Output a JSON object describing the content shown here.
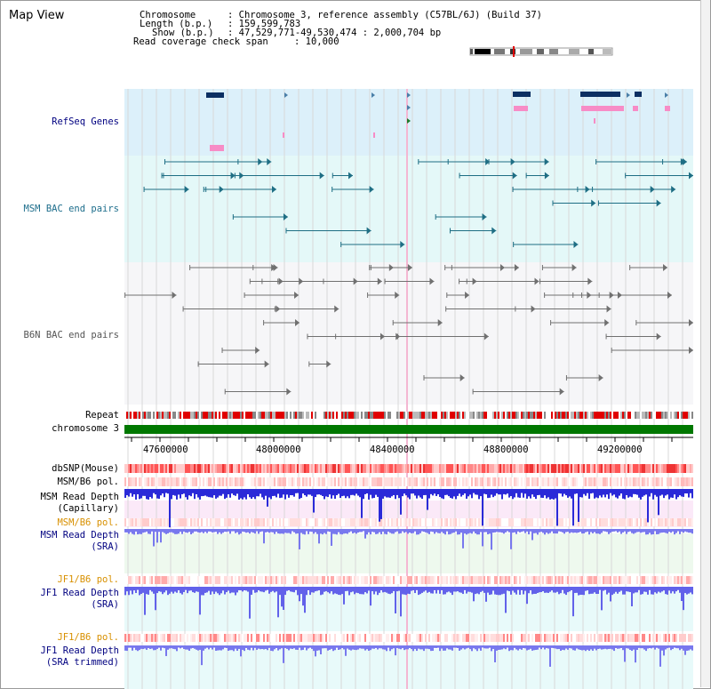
{
  "window": {
    "title": "Map View"
  },
  "info": {
    "chromosome_key": "Chromosome",
    "chromosome_val": ": Chromosome 3, reference assembly (C57BL/6J) (Build 37)",
    "length_key": "Length (b.p.)",
    "length_val": ": 159,599,783",
    "show_key": "Show (b.p.)",
    "show_val": ": 47,529,771-49,530,474 : 2,000,704 bp",
    "coverage_key": "Read coverage check span",
    "coverage_val": ": 10,000"
  },
  "tracks": {
    "refseq": "RefSeq Genes",
    "msm_bac": "MSM BAC end pairs",
    "b6n_bac": "B6N BAC end pairs",
    "repeat": "Repeat",
    "chromosome": "chromosome 3",
    "dbsnp": "dbSNP(Mouse)",
    "msm_b6_pol_1": "MSM/B6 pol.",
    "msm_read_depth_cap_1": "MSM Read Depth",
    "msm_read_depth_cap_2": "(Capillary)",
    "msm_b6_pol_2": "MSM/B6 pol.",
    "msm_read_depth_sra_1": "MSM Read Depth",
    "msm_read_depth_sra_2": "(SRA)",
    "jf1_b6_pol_1": "JF1/B6 pol.",
    "jf1_read_depth_sra_1": "JF1 Read Depth",
    "jf1_read_depth_sra_2": "(SRA)",
    "jf1_b6_pol_2": "JF1/B6 pol.",
    "jf1_read_depth_trim_1": "JF1 Read Depth",
    "jf1_read_depth_trim_2": "(SRA trimmed)"
  },
  "ruler": {
    "ticks": [
      "47600000",
      "48000000",
      "48400000",
      "48800000",
      "49200000"
    ]
  },
  "colors": {
    "refseq_bg": "#dcf0fa",
    "msm_bac_bg": "#e4f8f8",
    "b6n_bac_bg": "#f6f6f8",
    "msm_bac": "#1e6e84",
    "b6n_bac": "#707070",
    "gene_dark": "#0c2f62",
    "gene_pink": "#f78cc6",
    "chromosome_bar": "#007800",
    "label_blue": "#000080",
    "label_orange": "#d89000",
    "label_teal": "#1e6e8c"
  }
}
